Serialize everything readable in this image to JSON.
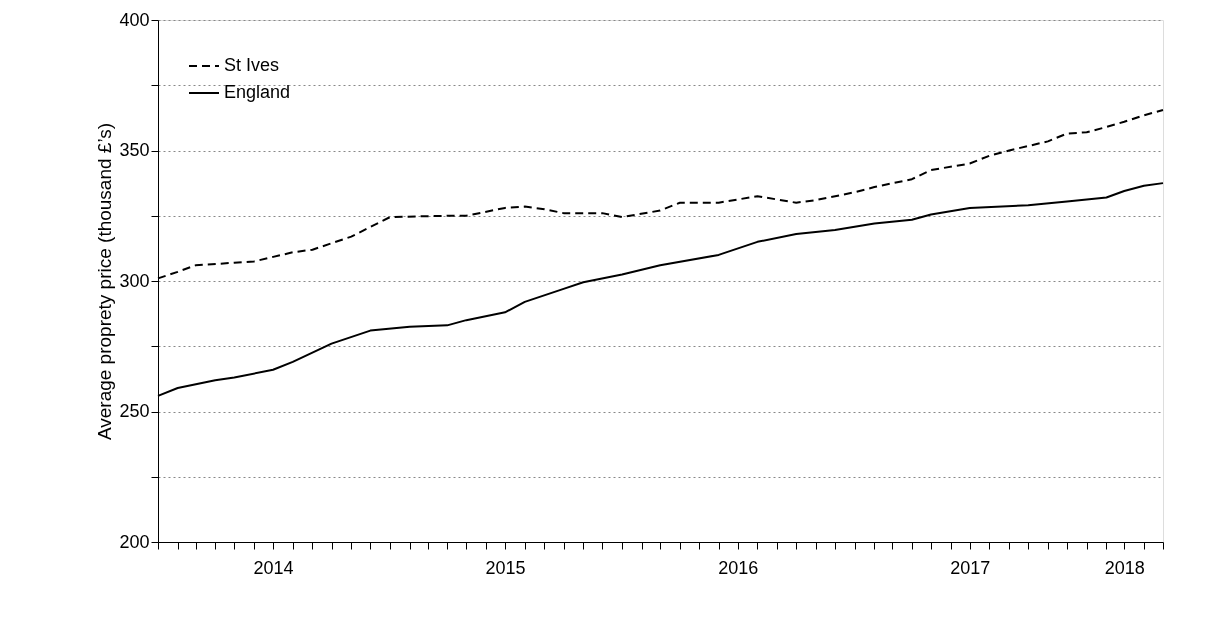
{
  "chart_data": {
    "type": "line",
    "ylabel": "Average proprety price (thousand £’s)",
    "xlim": [
      "2014-01",
      "2018-05"
    ],
    "ylim": [
      200,
      400
    ],
    "xticks": [
      {
        "value": "2014-01",
        "label": null
      },
      {
        "value": "2014-02",
        "label": null
      },
      {
        "value": "2014-03",
        "label": null
      },
      {
        "value": "2014-04",
        "label": null
      },
      {
        "value": "2014-05",
        "label": null
      },
      {
        "value": "2014-06",
        "label": null
      },
      {
        "value": "2014-07",
        "label": "2014"
      },
      {
        "value": "2014-08",
        "label": null
      },
      {
        "value": "2014-09",
        "label": null
      },
      {
        "value": "2014-10",
        "label": null
      },
      {
        "value": "2014-11",
        "label": null
      },
      {
        "value": "2014-12",
        "label": null
      },
      {
        "value": "2015-01",
        "label": null
      },
      {
        "value": "2015-02",
        "label": null
      },
      {
        "value": "2015-03",
        "label": null
      },
      {
        "value": "2015-04",
        "label": null
      },
      {
        "value": "2015-05",
        "label": null
      },
      {
        "value": "2015-06",
        "label": null
      },
      {
        "value": "2015-07",
        "label": "2015"
      },
      {
        "value": "2015-08",
        "label": null
      },
      {
        "value": "2015-09",
        "label": null
      },
      {
        "value": "2015-10",
        "label": null
      },
      {
        "value": "2015-11",
        "label": null
      },
      {
        "value": "2015-12",
        "label": null
      },
      {
        "value": "2016-01",
        "label": null
      },
      {
        "value": "2016-02",
        "label": null
      },
      {
        "value": "2016-03",
        "label": null
      },
      {
        "value": "2016-04",
        "label": null
      },
      {
        "value": "2016-05",
        "label": null
      },
      {
        "value": "2016-06",
        "label": null
      },
      {
        "value": "2016-07",
        "label": "2016"
      },
      {
        "value": "2016-08",
        "label": null
      },
      {
        "value": "2016-09",
        "label": null
      },
      {
        "value": "2016-10",
        "label": null
      },
      {
        "value": "2016-11",
        "label": null
      },
      {
        "value": "2016-12",
        "label": null
      },
      {
        "value": "2017-01",
        "label": null
      },
      {
        "value": "2017-02",
        "label": null
      },
      {
        "value": "2017-03",
        "label": null
      },
      {
        "value": "2017-04",
        "label": null
      },
      {
        "value": "2017-05",
        "label": null
      },
      {
        "value": "2017-06",
        "label": null
      },
      {
        "value": "2017-07",
        "label": "2017"
      },
      {
        "value": "2017-08",
        "label": null
      },
      {
        "value": "2017-09",
        "label": null
      },
      {
        "value": "2017-10",
        "label": null
      },
      {
        "value": "2017-11",
        "label": null
      },
      {
        "value": "2017-12",
        "label": null
      },
      {
        "value": "2018-01",
        "label": null
      },
      {
        "value": "2018-02",
        "label": null
      },
      {
        "value": "2018-03",
        "label": "2018"
      },
      {
        "value": "2018-04",
        "label": null
      },
      {
        "value": "2018-05",
        "label": null
      }
    ],
    "yticks": [
      200,
      {
        "value": 225,
        "label": null
      },
      250,
      {
        "value": 275,
        "label": null
      },
      300,
      {
        "value": 325,
        "label": null
      },
      350,
      {
        "value": 375,
        "label": null
      },
      400
    ],
    "grid": "y",
    "legend": "top left",
    "series": [
      {
        "name": "St Ives",
        "color": "#000000",
        "line_style": "dashed",
        "x": [
          "2014-01",
          "2014-02",
          "2014-03",
          "2014-05",
          "2014-06",
          "2014-08",
          "2014-09",
          "2014-11",
          "2015-01",
          "2015-04",
          "2015-05",
          "2015-07",
          "2015-08",
          "2015-09",
          "2015-10",
          "2015-12",
          "2016-01",
          "2016-03",
          "2016-04",
          "2016-06",
          "2016-08",
          "2016-10",
          "2016-11",
          "2017-01",
          "2017-02",
          "2017-04",
          "2017-05",
          "2017-07",
          "2017-08",
          "2017-09",
          "2017-11",
          "2017-12",
          "2018-01",
          "2018-02",
          "2018-03",
          "2018-04",
          "2018-05"
        ],
        "values": [
          301,
          303.5,
          306,
          307,
          307.5,
          311,
          312,
          317,
          324.5,
          325,
          325,
          328,
          328.5,
          327.5,
          326,
          326,
          324.5,
          327,
          330,
          330,
          332.5,
          330,
          331,
          334,
          336,
          339,
          342.5,
          345,
          348,
          350,
          353.5,
          356.5,
          357,
          359,
          361,
          363.5,
          365.5
        ]
      },
      {
        "name": "England",
        "color": "#000000",
        "line_style": "solid",
        "x": [
          "2014-01",
          "2014-02",
          "2014-04",
          "2014-05",
          "2014-07",
          "2014-08",
          "2014-10",
          "2014-12",
          "2015-02",
          "2015-04",
          "2015-05",
          "2015-07",
          "2015-08",
          "2015-10",
          "2015-11",
          "2016-01",
          "2016-03",
          "2016-06",
          "2016-08",
          "2016-10",
          "2016-12",
          "2017-02",
          "2017-04",
          "2017-05",
          "2017-07",
          "2017-10",
          "2017-12",
          "2018-02",
          "2018-03",
          "2018-04",
          "2018-05"
        ],
        "values": [
          256,
          259,
          262,
          263,
          266,
          269,
          276,
          281,
          282.5,
          283,
          285,
          288,
          292,
          297,
          299.5,
          302.5,
          306,
          310,
          315,
          318,
          319.5,
          322,
          323.5,
          325.5,
          328,
          329,
          330.5,
          332,
          334.5,
          336.5,
          337.5
        ]
      }
    ]
  }
}
